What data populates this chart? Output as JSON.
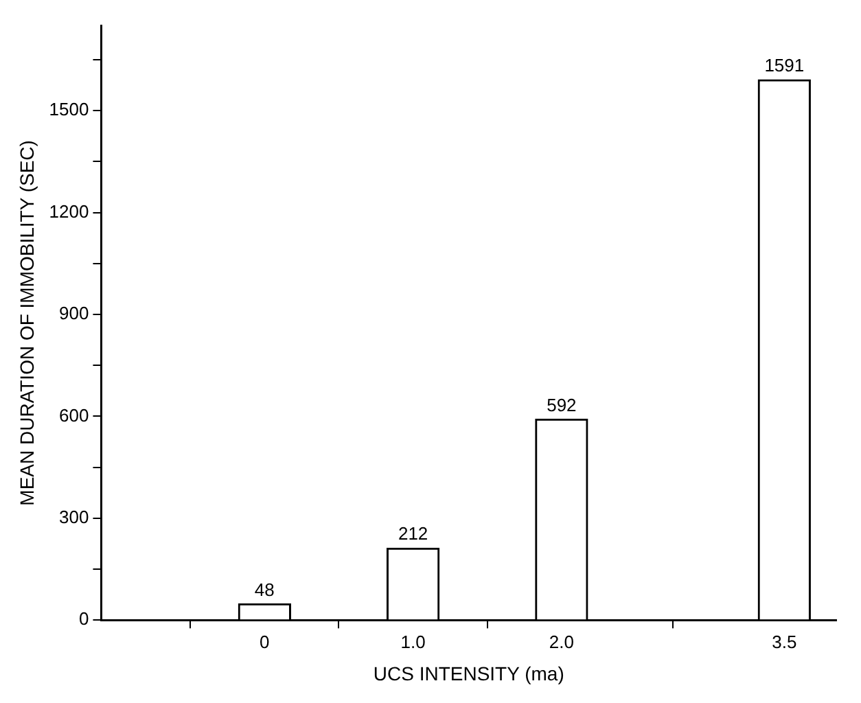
{
  "chart_data": {
    "type": "bar",
    "xlabel": "UCS INTENSITY (ma)",
    "ylabel": "MEAN DURATION OF IMMOBILITY (SEC)",
    "x": [
      0,
      1.0,
      2.0,
      3.5
    ],
    "values": [
      48,
      212,
      592,
      1591
    ],
    "color": "#ffffff",
    "data_labels": true,
    "xlim": [
      -1.1,
      3.85
    ],
    "xticks": [
      0,
      {
        "value": 1,
        "label": "1.0"
      },
      {
        "value": 2,
        "label": "2.0"
      },
      {
        "value": 3.5,
        "label": "3.5"
      }
    ],
    "ylim": [
      0,
      1750
    ],
    "yticks": [
      0,
      {
        "value": 150,
        "label": null
      },
      300,
      {
        "value": 450,
        "label": null
      },
      600,
      {
        "value": 750,
        "label": null
      },
      900,
      {
        "value": 1050,
        "label": null
      },
      1200,
      {
        "value": 1350,
        "label": null
      },
      1500,
      {
        "value": 1650,
        "label": null
      }
    ],
    "grid": false,
    "legend": false
  }
}
